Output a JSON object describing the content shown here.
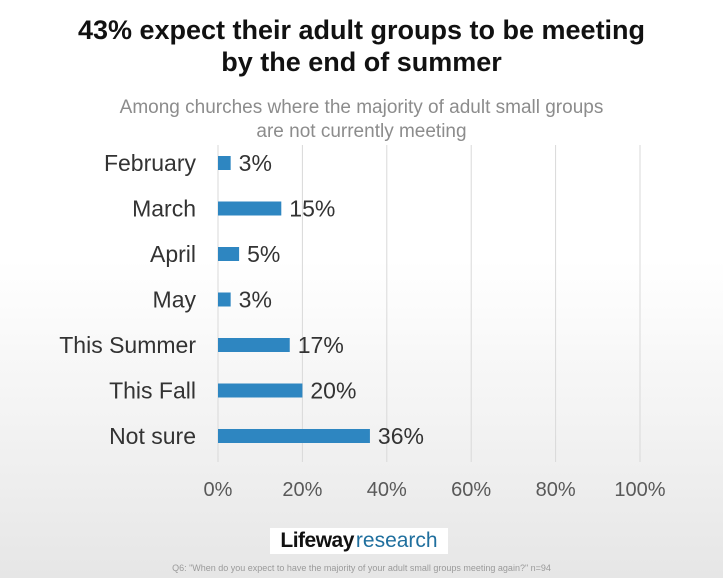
{
  "title_lines": [
    "43% expect their adult groups to be meeting",
    "by the end of summer"
  ],
  "subtitle_lines": [
    "Among churches where the majority of adult small groups",
    "are not currently meeting"
  ],
  "logo": {
    "word": "Lifeway",
    "suffix": "research"
  },
  "footnote": "Q6: \"When do you expect to have the majority of your adult small groups meeting again?\" n=94",
  "colors": {
    "bar": "#2e86c1",
    "grid": "#d9d9d9",
    "label": "#333333",
    "tick": "#595959"
  },
  "chart_data": {
    "type": "bar",
    "orientation": "horizontal",
    "title": "43% expect their adult groups to be meeting by the end of summer",
    "subtitle": "Among churches where the majority of adult small groups are not currently meeting",
    "categories": [
      "February",
      "March",
      "April",
      "May",
      "This Summer",
      "This Fall",
      "Not sure"
    ],
    "values": [
      3,
      15,
      5,
      3,
      17,
      20,
      36
    ],
    "value_labels": [
      "3%",
      "15%",
      "5%",
      "3%",
      "17%",
      "20%",
      "36%"
    ],
    "xlim": [
      0,
      100
    ],
    "xticks": [
      0,
      20,
      40,
      60,
      80,
      100
    ],
    "xtick_labels": [
      "0%",
      "20%",
      "40%",
      "60%",
      "80%",
      "100%"
    ],
    "grid": true,
    "legend": "none"
  }
}
